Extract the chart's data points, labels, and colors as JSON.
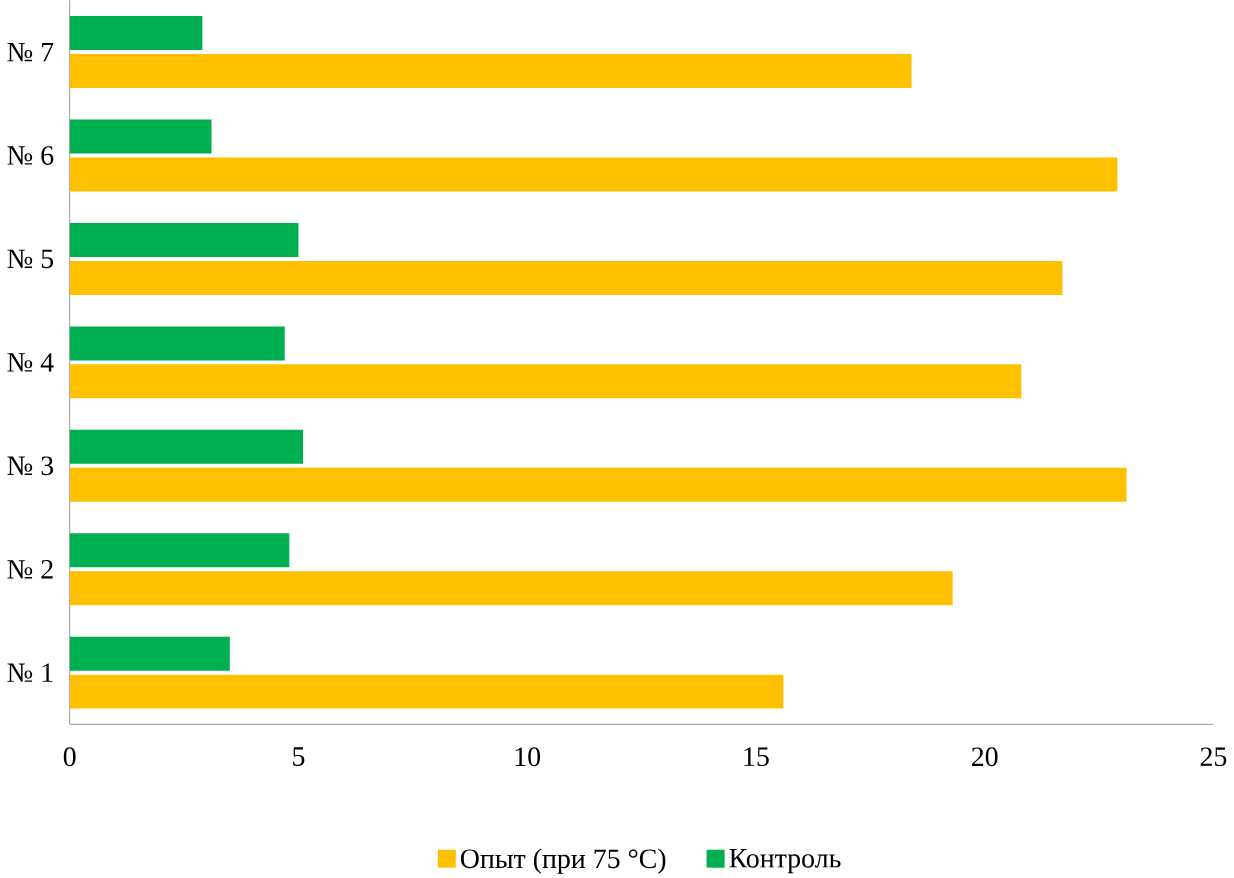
{
  "chart_data": {
    "type": "bar",
    "orientation": "horizontal",
    "categories": [
      "№ 7",
      "№ 6",
      "№ 5",
      "№ 4",
      "№ 3",
      "№ 2",
      "№ 1"
    ],
    "series": [
      {
        "name": "Опыт  (при 75 °C)",
        "color": "#ffc000",
        "values": [
          18.4,
          22.9,
          21.7,
          20.8,
          23.1,
          19.3,
          15.6
        ]
      },
      {
        "name": "Контроль",
        "color": "#00b050",
        "values": [
          2.9,
          3.1,
          5.0,
          4.7,
          5.1,
          4.8,
          3.5
        ]
      }
    ],
    "xlim": [
      0,
      25
    ],
    "xticks": [
      0,
      5,
      10,
      15,
      20,
      25
    ],
    "legend": "bottom",
    "grid": false
  }
}
